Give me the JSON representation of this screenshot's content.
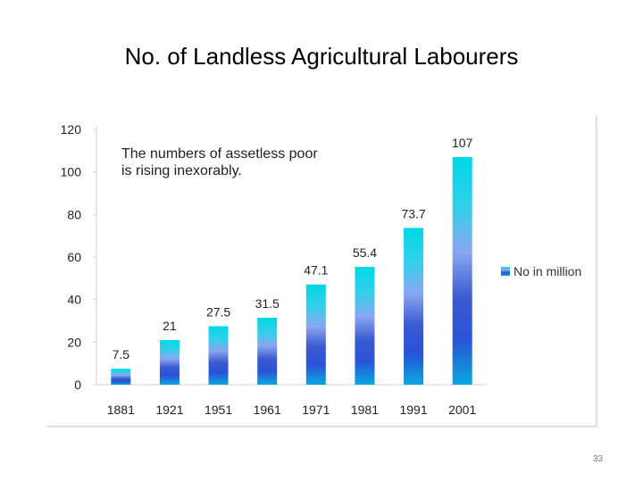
{
  "slide": {
    "title": "No. of Landless Agricultural Labourers",
    "page_number": "33"
  },
  "chart_data": {
    "type": "bar",
    "categories": [
      "1881",
      "1921",
      "1951",
      "1961",
      "1971",
      "1981",
      "1991",
      "2001"
    ],
    "series": [
      {
        "name": "No in million",
        "values": [
          7.5,
          21,
          27.5,
          31.5,
          47.1,
          55.4,
          73.7,
          107
        ],
        "labels": [
          "7.5",
          "21",
          "27.5",
          "31.5",
          "47.1",
          "55.4",
          "73.7",
          "107"
        ]
      }
    ],
    "title": "",
    "xlabel": "",
    "ylabel": "",
    "ylim": [
      0,
      120
    ],
    "yticks": [
      0,
      20,
      40,
      60,
      80,
      100,
      120
    ],
    "grid": false,
    "legend": "right",
    "annotation": "The numbers of assetless poor is rising inexorably.",
    "colors": {
      "bar_gradient": [
        "#00d8e8",
        "#33d0e8",
        "#8aa6f0",
        "#2a52d8",
        "#0aa8e0"
      ],
      "axis": "#d0d0d0",
      "text": "#222222"
    }
  }
}
